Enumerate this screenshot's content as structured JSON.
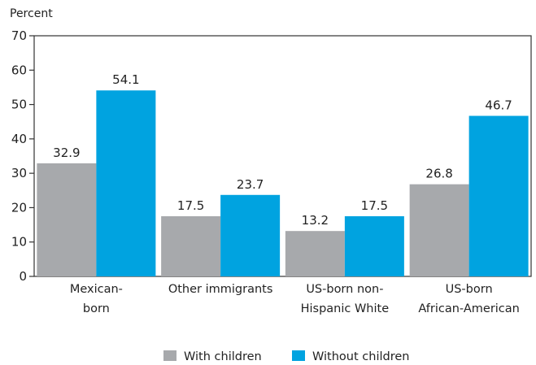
{
  "chart_data": {
    "type": "bar",
    "ylabel": "Percent",
    "ylim": [
      0,
      70
    ],
    "yticks": [
      0,
      10,
      20,
      30,
      40,
      50,
      60,
      70
    ],
    "categories": [
      [
        "Mexican-",
        "born"
      ],
      [
        "Other immigrants"
      ],
      [
        "US-born non-",
        "Hispanic White"
      ],
      [
        "US-born",
        "African-American"
      ]
    ],
    "series": [
      {
        "name": "With children",
        "color": "#a7a9ac",
        "values": [
          32.9,
          17.5,
          13.2,
          26.8
        ],
        "labels": [
          "32.9",
          "17.5",
          "13.2",
          "26.8"
        ]
      },
      {
        "name": "Without children",
        "color": "#00a3e0",
        "values": [
          54.1,
          23.7,
          17.5,
          46.7
        ],
        "labels": [
          "54.1",
          "23.7",
          "17.5",
          "46.7"
        ]
      }
    ],
    "grid": false,
    "legend_position": "bottom-center"
  }
}
